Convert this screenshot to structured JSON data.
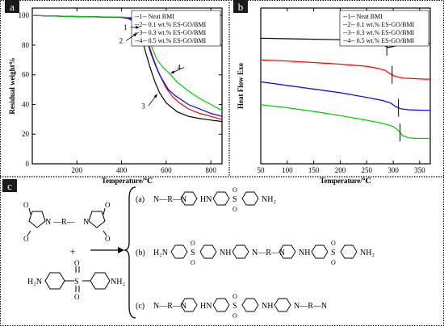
{
  "chart_data": [
    {
      "type": "line",
      "panel_label": "a",
      "title": "",
      "xlabel": "Temperature/℃",
      "ylabel": "Residual weight%",
      "xlim": [
        0,
        850
      ],
      "ylim": [
        0,
        105
      ],
      "xticks": [
        200,
        400,
        600,
        800
      ],
      "yticks": [
        0,
        20,
        40,
        60,
        80,
        100
      ],
      "grid": false,
      "legend_position": "top-right",
      "series": [
        {
          "name": "--1--    Neat BMI",
          "color": "#000000",
          "x": [
            0,
            100,
            200,
            300,
            400,
            430,
            450,
            470,
            490,
            510,
            530,
            550,
            570,
            600,
            650,
            700,
            750,
            800,
            850
          ],
          "y": [
            100,
            99.6,
            99.2,
            99,
            98.7,
            98,
            96.5,
            92,
            85,
            74,
            64,
            55,
            48,
            41,
            35,
            32,
            30.5,
            29.5,
            28.5
          ]
        },
        {
          "name": "--2--    0.1 wt.% ES-GO/BMI",
          "color": "#ff0000",
          "x": [
            0,
            100,
            200,
            300,
            400,
            440,
            460,
            480,
            500,
            520,
            540,
            560,
            580,
            600,
            630,
            660,
            700,
            750,
            800,
            850
          ],
          "y": [
            100,
            99.6,
            99.3,
            99,
            98.8,
            98,
            97,
            95,
            90,
            81,
            72,
            64,
            57,
            51,
            45,
            41,
            37,
            34,
            32,
            30
          ]
        },
        {
          "name": "--3--    0.3 wt.% ES-GO/BMI",
          "color": "#0000ff",
          "x": [
            0,
            100,
            200,
            300,
            400,
            450,
            470,
            490,
            510,
            530,
            550,
            570,
            590,
            610,
            640,
            670,
            700,
            750,
            800,
            850
          ],
          "y": [
            100,
            99.6,
            99.3,
            99,
            98.8,
            98,
            97,
            94,
            86,
            75,
            67,
            60,
            55,
            50,
            46,
            43,
            40,
            37,
            34,
            32
          ]
        },
        {
          "name": "--4--    0.5 wt.% ES-GO/BMI",
          "color": "#00cc00",
          "x": [
            0,
            100,
            200,
            300,
            400,
            460,
            480,
            500,
            520,
            540,
            560,
            580,
            600,
            620,
            650,
            700,
            750,
            800,
            850
          ],
          "y": [
            100,
            99.6,
            99.3,
            99,
            98.9,
            98.5,
            96,
            92,
            85,
            77,
            70,
            66,
            63,
            60,
            55,
            49,
            44,
            40,
            36
          ]
        }
      ],
      "annotations": [
        {
          "text": "1",
          "x": 440,
          "y": 92,
          "arrow_to": [
            480,
            92
          ]
        },
        {
          "text": "2",
          "x": 420,
          "y": 83,
          "arrow_to": [
            470,
            88
          ]
        },
        {
          "text": "3",
          "x": 520,
          "y": 39,
          "arrow_to": [
            560,
            47
          ]
        },
        {
          "text": "4",
          "x": 680,
          "y": 65,
          "arrow_to": [
            620,
            61
          ]
        }
      ]
    },
    {
      "type": "line",
      "panel_label": "b",
      "title": "",
      "xlabel": "Temperature/℃",
      "ylabel": "Heat Flow   Exo",
      "xlim": [
        50,
        370
      ],
      "xticks": [
        50,
        100,
        150,
        200,
        250,
        300,
        350
      ],
      "yticks": [],
      "grid": false,
      "legend_position": "top-right",
      "series": [
        {
          "name": "--1--    Neat BMI",
          "color": "#000000",
          "x": [
            50,
            100,
            150,
            200,
            250,
            270,
            280,
            290,
            300,
            320,
            340,
            360,
            370
          ],
          "y": [
            14.2,
            14.1,
            14.0,
            13.9,
            13.6,
            13.3,
            13.0,
            12.4,
            12.6,
            13.1,
            13.3,
            13.2,
            13.2
          ],
          "transition_x": 288
        },
        {
          "name": "--2--    0.1 wt.% ES-GO/BMI",
          "color": "#ff0000",
          "x": [
            50,
            100,
            150,
            200,
            250,
            270,
            285,
            295,
            305,
            320,
            340,
            360,
            370
          ],
          "y": [
            10.0,
            9.8,
            9.5,
            9.2,
            8.8,
            8.4,
            8.0,
            7.3,
            6.8,
            6.5,
            6.4,
            6.3,
            6.3
          ],
          "transition_x": 298
        },
        {
          "name": "--3--    0.3 wt.% ES-GO/BMI",
          "color": "#0000ff",
          "x": [
            50,
            100,
            150,
            200,
            250,
            280,
            295,
            305,
            315,
            330,
            345,
            360,
            370
          ],
          "y": [
            5.8,
            5.1,
            4.4,
            3.7,
            2.8,
            2.2,
            1.7,
            1.0,
            0.6,
            0.4,
            0.35,
            0.3,
            0.3
          ],
          "transition_x": 310
        },
        {
          "name": "--4--    0.5 wt.% ES-GO/BMI",
          "color": "#00cc00",
          "x": [
            50,
            100,
            150,
            200,
            250,
            280,
            300,
            310,
            318,
            330,
            345,
            360,
            370
          ],
          "y": [
            1.4,
            0.8,
            0.1,
            -0.7,
            -1.6,
            -2.2,
            -2.8,
            -3.6,
            -4.6,
            -5.0,
            -5.1,
            -5.1,
            -5.1
          ],
          "transition_x": 313
        }
      ]
    }
  ],
  "scheme": {
    "panel_label": "c",
    "reactants": {
      "bmi_left": "N",
      "bmi_link": "—R—",
      "bmi_right": "N",
      "plus": "+",
      "dds_amine_left": "H₂N",
      "dds_sulfonyl": "S",
      "dds_amine_right": "NH₂"
    },
    "products": [
      {
        "label": "(a)",
        "segments": [
          "N—R—N",
          "HN",
          "S",
          "NH₂"
        ]
      },
      {
        "label": "(b)",
        "segments": [
          "H₂N",
          "S",
          "NH",
          "N—R—N",
          "NH",
          "S",
          "NH₂"
        ]
      },
      {
        "label": "(c)",
        "segments": [
          "N—R—N",
          "HN",
          "S",
          "NH",
          "N—R—N"
        ]
      }
    ],
    "oxygen": "O"
  }
}
